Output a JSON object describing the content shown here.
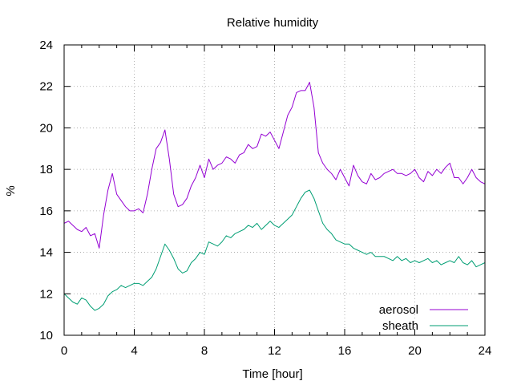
{
  "chart_data": {
    "type": "line",
    "title": "Relative humidity",
    "xlabel": "Time [hour]",
    "ylabel": "%",
    "xlim": [
      0,
      24
    ],
    "ylim": [
      10,
      24
    ],
    "xticks": [
      0,
      4,
      8,
      12,
      16,
      20,
      24
    ],
    "xtick_labels": [
      "0",
      "4",
      "8",
      "12",
      "16",
      "20",
      "24"
    ],
    "yticks": [
      10,
      12,
      14,
      16,
      18,
      20,
      22,
      24
    ],
    "ytick_labels": [
      "10",
      "12",
      "14",
      "16",
      "18",
      "20",
      "22",
      "24"
    ],
    "grid": true,
    "legend_position": "bottom-right",
    "series": [
      {
        "name": "aerosol",
        "color": "#9400d3",
        "points": [
          [
            0,
            15.4
          ],
          [
            0.25,
            15.5
          ],
          [
            0.5,
            15.3
          ],
          [
            0.75,
            15.1
          ],
          [
            1.0,
            15.0
          ],
          [
            1.25,
            15.2
          ],
          [
            1.5,
            14.8
          ],
          [
            1.75,
            14.9
          ],
          [
            2.0,
            14.2
          ],
          [
            2.25,
            15.8
          ],
          [
            2.5,
            17.0
          ],
          [
            2.75,
            17.8
          ],
          [
            3.0,
            16.8
          ],
          [
            3.25,
            16.5
          ],
          [
            3.5,
            16.2
          ],
          [
            3.75,
            16.0
          ],
          [
            4.0,
            16.0
          ],
          [
            4.25,
            16.1
          ],
          [
            4.5,
            15.9
          ],
          [
            4.75,
            16.8
          ],
          [
            5.0,
            18.0
          ],
          [
            5.25,
            19.0
          ],
          [
            5.5,
            19.3
          ],
          [
            5.75,
            19.9
          ],
          [
            6.0,
            18.5
          ],
          [
            6.25,
            16.8
          ],
          [
            6.5,
            16.2
          ],
          [
            6.75,
            16.3
          ],
          [
            7.0,
            16.6
          ],
          [
            7.25,
            17.2
          ],
          [
            7.5,
            17.6
          ],
          [
            7.75,
            18.2
          ],
          [
            8.0,
            17.6
          ],
          [
            8.25,
            18.5
          ],
          [
            8.5,
            18.0
          ],
          [
            8.75,
            18.2
          ],
          [
            9.0,
            18.3
          ],
          [
            9.25,
            18.6
          ],
          [
            9.5,
            18.5
          ],
          [
            9.75,
            18.3
          ],
          [
            10.0,
            18.7
          ],
          [
            10.25,
            18.8
          ],
          [
            10.5,
            19.2
          ],
          [
            10.75,
            19.0
          ],
          [
            11.0,
            19.1
          ],
          [
            11.25,
            19.7
          ],
          [
            11.5,
            19.6
          ],
          [
            11.75,
            19.8
          ],
          [
            12.0,
            19.4
          ],
          [
            12.25,
            19.0
          ],
          [
            12.5,
            19.8
          ],
          [
            12.75,
            20.6
          ],
          [
            13.0,
            21.0
          ],
          [
            13.25,
            21.7
          ],
          [
            13.5,
            21.8
          ],
          [
            13.75,
            21.8
          ],
          [
            14.0,
            22.2
          ],
          [
            14.25,
            21.0
          ],
          [
            14.5,
            18.8
          ],
          [
            14.75,
            18.3
          ],
          [
            15.0,
            18.0
          ],
          [
            15.25,
            17.8
          ],
          [
            15.5,
            17.5
          ],
          [
            15.75,
            18.0
          ],
          [
            16.0,
            17.6
          ],
          [
            16.25,
            17.2
          ],
          [
            16.5,
            18.2
          ],
          [
            16.75,
            17.7
          ],
          [
            17.0,
            17.4
          ],
          [
            17.25,
            17.3
          ],
          [
            17.5,
            17.8
          ],
          [
            17.75,
            17.5
          ],
          [
            18.0,
            17.6
          ],
          [
            18.25,
            17.8
          ],
          [
            18.5,
            17.9
          ],
          [
            18.75,
            18.0
          ],
          [
            19.0,
            17.8
          ],
          [
            19.25,
            17.8
          ],
          [
            19.5,
            17.7
          ],
          [
            19.75,
            17.8
          ],
          [
            20.0,
            18.0
          ],
          [
            20.25,
            17.6
          ],
          [
            20.5,
            17.4
          ],
          [
            20.75,
            17.9
          ],
          [
            21.0,
            17.7
          ],
          [
            21.25,
            18.0
          ],
          [
            21.5,
            17.8
          ],
          [
            21.75,
            18.1
          ],
          [
            22.0,
            18.3
          ],
          [
            22.25,
            17.6
          ],
          [
            22.5,
            17.6
          ],
          [
            22.75,
            17.3
          ],
          [
            23.0,
            17.6
          ],
          [
            23.25,
            18.0
          ],
          [
            23.5,
            17.6
          ],
          [
            23.75,
            17.4
          ],
          [
            24.0,
            17.3
          ]
        ]
      },
      {
        "name": "sheath",
        "color": "#009e73",
        "points": [
          [
            0,
            12.0
          ],
          [
            0.25,
            11.8
          ],
          [
            0.5,
            11.6
          ],
          [
            0.75,
            11.5
          ],
          [
            1.0,
            11.8
          ],
          [
            1.25,
            11.7
          ],
          [
            1.5,
            11.4
          ],
          [
            1.75,
            11.2
          ],
          [
            2.0,
            11.3
          ],
          [
            2.25,
            11.5
          ],
          [
            2.5,
            11.9
          ],
          [
            2.75,
            12.1
          ],
          [
            3.0,
            12.2
          ],
          [
            3.25,
            12.4
          ],
          [
            3.5,
            12.3
          ],
          [
            3.75,
            12.4
          ],
          [
            4.0,
            12.5
          ],
          [
            4.25,
            12.5
          ],
          [
            4.5,
            12.4
          ],
          [
            4.75,
            12.6
          ],
          [
            5.0,
            12.8
          ],
          [
            5.25,
            13.2
          ],
          [
            5.5,
            13.8
          ],
          [
            5.75,
            14.4
          ],
          [
            6.0,
            14.1
          ],
          [
            6.25,
            13.7
          ],
          [
            6.5,
            13.2
          ],
          [
            6.75,
            13.0
          ],
          [
            7.0,
            13.1
          ],
          [
            7.25,
            13.5
          ],
          [
            7.5,
            13.7
          ],
          [
            7.75,
            14.0
          ],
          [
            8.0,
            13.9
          ],
          [
            8.25,
            14.5
          ],
          [
            8.5,
            14.4
          ],
          [
            8.75,
            14.3
          ],
          [
            9.0,
            14.5
          ],
          [
            9.25,
            14.8
          ],
          [
            9.5,
            14.7
          ],
          [
            9.75,
            14.9
          ],
          [
            10.0,
            15.0
          ],
          [
            10.25,
            15.1
          ],
          [
            10.5,
            15.3
          ],
          [
            10.75,
            15.2
          ],
          [
            11.0,
            15.4
          ],
          [
            11.25,
            15.1
          ],
          [
            11.5,
            15.3
          ],
          [
            11.75,
            15.5
          ],
          [
            12.0,
            15.3
          ],
          [
            12.25,
            15.2
          ],
          [
            12.5,
            15.4
          ],
          [
            12.75,
            15.6
          ],
          [
            13.0,
            15.8
          ],
          [
            13.25,
            16.2
          ],
          [
            13.5,
            16.6
          ],
          [
            13.75,
            16.9
          ],
          [
            14.0,
            17.0
          ],
          [
            14.25,
            16.6
          ],
          [
            14.5,
            16.0
          ],
          [
            14.75,
            15.4
          ],
          [
            15.0,
            15.1
          ],
          [
            15.25,
            14.9
          ],
          [
            15.5,
            14.6
          ],
          [
            15.75,
            14.5
          ],
          [
            16.0,
            14.4
          ],
          [
            16.25,
            14.4
          ],
          [
            16.5,
            14.2
          ],
          [
            16.75,
            14.1
          ],
          [
            17.0,
            14.0
          ],
          [
            17.25,
            13.9
          ],
          [
            17.5,
            14.0
          ],
          [
            17.75,
            13.8
          ],
          [
            18.0,
            13.8
          ],
          [
            18.25,
            13.8
          ],
          [
            18.5,
            13.7
          ],
          [
            18.75,
            13.6
          ],
          [
            19.0,
            13.8
          ],
          [
            19.25,
            13.6
          ],
          [
            19.5,
            13.7
          ],
          [
            19.75,
            13.5
          ],
          [
            20.0,
            13.6
          ],
          [
            20.25,
            13.5
          ],
          [
            20.5,
            13.6
          ],
          [
            20.75,
            13.7
          ],
          [
            21.0,
            13.5
          ],
          [
            21.25,
            13.6
          ],
          [
            21.5,
            13.4
          ],
          [
            21.75,
            13.5
          ],
          [
            22.0,
            13.6
          ],
          [
            22.25,
            13.5
          ],
          [
            22.5,
            13.8
          ],
          [
            22.75,
            13.5
          ],
          [
            23.0,
            13.4
          ],
          [
            23.25,
            13.6
          ],
          [
            23.5,
            13.3
          ],
          [
            23.75,
            13.4
          ],
          [
            24.0,
            13.5
          ]
        ]
      }
    ]
  }
}
